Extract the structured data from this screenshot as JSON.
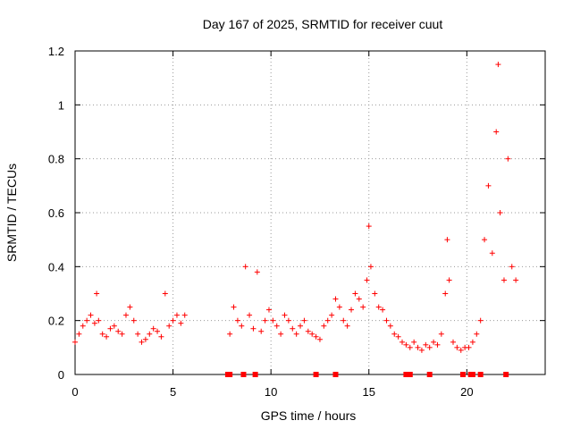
{
  "chart_data": {
    "type": "scatter",
    "title": "Day 167 of 2025, SRMTID for receiver cuut",
    "xlabel": "GPS time / hours",
    "ylabel": "SRMTID / TECUs",
    "xlim": [
      0,
      24
    ],
    "ylim": [
      0,
      1.2
    ],
    "x_ticks": [
      0,
      5,
      10,
      15,
      20
    ],
    "x_tick_labels": [
      "0",
      "5",
      "10",
      "15",
      "20"
    ],
    "y_ticks": [
      0,
      0.2,
      0.4,
      0.6,
      0.8,
      1.0,
      1.2
    ],
    "y_tick_labels": [
      "0",
      "0.2",
      "0.4",
      "0.6",
      "0.8",
      "1",
      "1.2"
    ],
    "grid": true,
    "marker": "plus",
    "color": "#ff0000",
    "series": [
      {
        "name": "SRMTID",
        "x": [
          0.0,
          0.2,
          0.4,
          0.6,
          0.8,
          1.0,
          1.1,
          1.2,
          1.4,
          1.6,
          1.8,
          2.0,
          2.2,
          2.4,
          2.6,
          2.8,
          3.0,
          3.2,
          3.4,
          3.6,
          3.8,
          4.0,
          4.2,
          4.4,
          4.6,
          4.8,
          5.0,
          5.2,
          5.4,
          5.6,
          7.9,
          8.1,
          8.3,
          8.5,
          8.7,
          8.9,
          9.1,
          9.3,
          9.5,
          9.7,
          9.9,
          10.1,
          10.3,
          10.5,
          10.7,
          10.9,
          11.1,
          11.3,
          11.5,
          11.7,
          11.9,
          12.1,
          12.3,
          12.5,
          12.7,
          12.9,
          13.1,
          13.3,
          13.5,
          13.7,
          13.9,
          14.1,
          14.3,
          14.5,
          14.7,
          14.9,
          15.0,
          15.1,
          15.3,
          15.5,
          15.7,
          15.9,
          16.1,
          16.3,
          16.5,
          16.7,
          16.9,
          17.1,
          17.3,
          17.5,
          17.7,
          17.9,
          18.1,
          18.3,
          18.5,
          18.7,
          18.9,
          19.0,
          19.1,
          19.3,
          19.5,
          19.7,
          19.9,
          20.1,
          20.3,
          20.5,
          20.7,
          20.9,
          21.1,
          21.3,
          21.5,
          21.6,
          21.7,
          21.9,
          22.1,
          22.3,
          22.5
        ],
        "y": [
          0.12,
          0.15,
          0.18,
          0.2,
          0.22,
          0.19,
          0.3,
          0.2,
          0.15,
          0.14,
          0.17,
          0.18,
          0.16,
          0.15,
          0.22,
          0.25,
          0.2,
          0.15,
          0.12,
          0.13,
          0.15,
          0.17,
          0.16,
          0.14,
          0.3,
          0.18,
          0.2,
          0.22,
          0.19,
          0.22,
          0.15,
          0.25,
          0.2,
          0.18,
          0.4,
          0.22,
          0.17,
          0.38,
          0.16,
          0.2,
          0.24,
          0.2,
          0.18,
          0.15,
          0.22,
          0.2,
          0.17,
          0.15,
          0.18,
          0.2,
          0.16,
          0.15,
          0.14,
          0.13,
          0.18,
          0.2,
          0.22,
          0.28,
          0.25,
          0.2,
          0.18,
          0.24,
          0.3,
          0.28,
          0.25,
          0.35,
          0.55,
          0.4,
          0.3,
          0.25,
          0.24,
          0.2,
          0.18,
          0.15,
          0.14,
          0.12,
          0.11,
          0.1,
          0.12,
          0.1,
          0.09,
          0.11,
          0.1,
          0.12,
          0.11,
          0.15,
          0.3,
          0.5,
          0.35,
          0.12,
          0.1,
          0.09,
          0.1,
          0.1,
          0.12,
          0.15,
          0.2,
          0.5,
          0.7,
          0.45,
          0.9,
          1.15,
          0.6,
          0.35,
          0.8,
          0.4,
          0.35
        ]
      }
    ],
    "gap_markers_x": [
      7.8,
      7.9,
      8.6,
      9.2,
      12.3,
      13.3,
      16.9,
      17.0,
      17.1,
      18.1,
      19.8,
      20.2,
      20.3,
      20.7,
      22.0
    ]
  }
}
